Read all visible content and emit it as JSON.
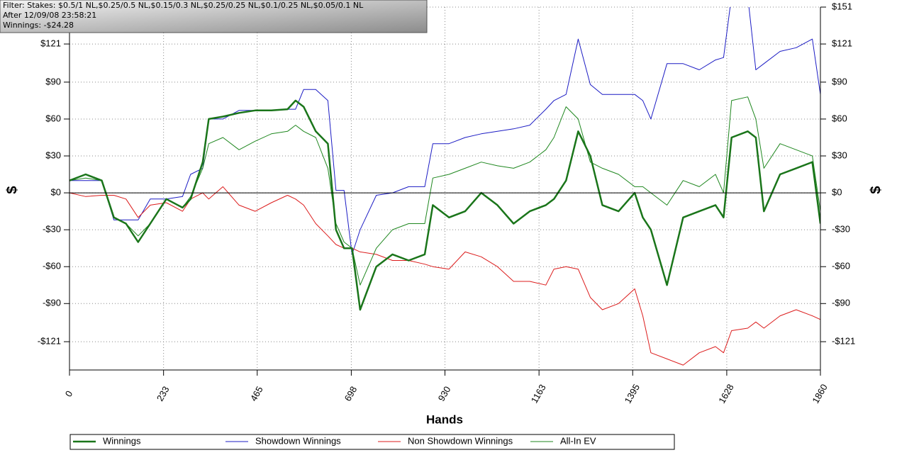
{
  "chart_data": {
    "type": "line",
    "annotations": [
      "Filter: Stakes: $0.5/1 NL,$0.25/0.5 NL,$0.15/0.3 NL,$0.25/0.25 NL,$0.1/0.25 NL,$0.05/0.1 NL",
      "After 12/09/08 23:58:21",
      "Winnings: -$24.28"
    ],
    "xlabel": "Hands",
    "ylabel": "$",
    "y2label": "$",
    "xlim": [
      0,
      1860
    ],
    "xticks": [
      0,
      233,
      465,
      698,
      930,
      1163,
      1395,
      1628,
      1860
    ],
    "ylim": [
      -144,
      151
    ],
    "yticks": [
      {
        "value": 151,
        "label": "$151"
      },
      {
        "value": 121,
        "label": "$121"
      },
      {
        "value": 90,
        "label": "$90"
      },
      {
        "value": 60,
        "label": "$60"
      },
      {
        "value": 30,
        "label": "$30"
      },
      {
        "value": 0,
        "label": "$0"
      },
      {
        "value": -30,
        "label": "-$30"
      },
      {
        "value": -60,
        "label": "-$60"
      },
      {
        "value": -90,
        "label": "-$90"
      },
      {
        "value": -121,
        "label": "-$121"
      }
    ],
    "grid": true,
    "legend": "bottom",
    "x": [
      0,
      40,
      80,
      110,
      140,
      170,
      200,
      240,
      280,
      300,
      330,
      345,
      380,
      420,
      460,
      500,
      540,
      560,
      580,
      610,
      640,
      660,
      680,
      700,
      720,
      760,
      800,
      840,
      880,
      900,
      940,
      980,
      1020,
      1060,
      1100,
      1140,
      1180,
      1200,
      1230,
      1260,
      1290,
      1320,
      1360,
      1400,
      1420,
      1440,
      1480,
      1520,
      1560,
      1600,
      1620,
      1640,
      1680,
      1700,
      1720,
      1760,
      1800,
      1840,
      1860
    ],
    "series": [
      {
        "name": "Winnings",
        "color": "#1a751a",
        "line_width": 2.5,
        "values": [
          10,
          15,
          10,
          -20,
          -25,
          -40,
          -25,
          -5,
          -12,
          -5,
          25,
          60,
          62,
          65,
          67,
          67,
          68,
          75,
          70,
          50,
          40,
          -30,
          -45,
          -45,
          -95,
          -60,
          -50,
          -55,
          -50,
          -10,
          -20,
          -15,
          0,
          -10,
          -25,
          -15,
          -10,
          -5,
          10,
          50,
          30,
          -10,
          -15,
          0,
          -20,
          -30,
          -75,
          -20,
          -15,
          -10,
          -20,
          45,
          50,
          45,
          -15,
          15,
          20,
          25,
          -25
        ]
      },
      {
        "name": "Showdown Winnings",
        "color": "#1c1cc4",
        "line_width": 1,
        "values": [
          10,
          10,
          10,
          -22,
          -22,
          -22,
          -5,
          -5,
          -3,
          15,
          20,
          60,
          60,
          67,
          67,
          67,
          68,
          68,
          84,
          84,
          75,
          2,
          2,
          -50,
          -30,
          -2,
          0,
          5,
          5,
          40,
          40,
          45,
          48,
          50,
          52,
          55,
          68,
          75,
          80,
          125,
          88,
          80,
          80,
          80,
          75,
          60,
          105,
          105,
          100,
          108,
          110,
          160,
          160,
          100,
          105,
          115,
          118,
          125,
          80
        ]
      },
      {
        "name": "Non Showdown Winnings",
        "color": "#dc1c1c",
        "line_width": 1,
        "values": [
          0,
          -3,
          -2,
          -2,
          -5,
          -20,
          -10,
          -8,
          -15,
          -5,
          0,
          -5,
          5,
          -10,
          -15,
          -8,
          -2,
          -5,
          -10,
          -25,
          -35,
          -42,
          -45,
          -45,
          -48,
          -50,
          -55,
          -55,
          -58,
          -60,
          -62,
          -48,
          -52,
          -60,
          -72,
          -72,
          -75,
          -62,
          -60,
          -62,
          -85,
          -95,
          -90,
          -78,
          -100,
          -130,
          -135,
          -140,
          -130,
          -125,
          -130,
          -112,
          -110,
          -105,
          -110,
          -100,
          -95,
          -100,
          -103
        ]
      },
      {
        "name": "All-In EV",
        "color": "#1f871f",
        "line_width": 1,
        "values": [
          10,
          12,
          10,
          -20,
          -25,
          -35,
          -25,
          -5,
          -12,
          -3,
          20,
          40,
          45,
          35,
          42,
          48,
          50,
          55,
          50,
          45,
          20,
          -25,
          -40,
          -45,
          -75,
          -45,
          -30,
          -25,
          -25,
          12,
          15,
          20,
          25,
          22,
          20,
          25,
          35,
          45,
          70,
          60,
          25,
          20,
          15,
          5,
          5,
          0,
          -10,
          10,
          5,
          15,
          0,
          75,
          78,
          60,
          20,
          40,
          35,
          30,
          -15
        ]
      }
    ]
  }
}
